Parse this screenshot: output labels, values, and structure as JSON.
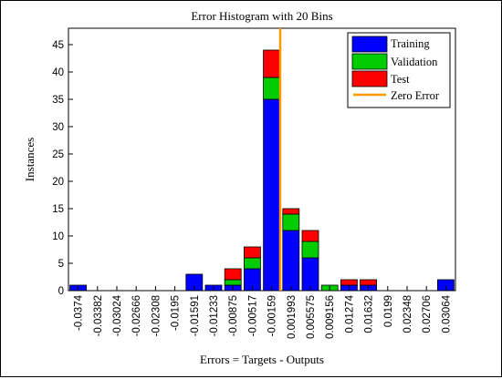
{
  "chart_data": {
    "type": "bar",
    "stacked": true,
    "title": "Error Histogram with 20 Bins",
    "xlabel": "Errors = Targets - Outputs",
    "ylabel": "Instances",
    "ylim": [
      0,
      48
    ],
    "yticks": [
      0,
      5,
      10,
      15,
      20,
      25,
      30,
      35,
      40,
      45
    ],
    "grid": false,
    "legend_position": "top-right",
    "categories": [
      "-0.0374",
      "-0.03382",
      "-0.03024",
      "-0.02666",
      "-0.02308",
      "-0.0195",
      "-0.01591",
      "-0.01233",
      "-0.00875",
      "-0.00517",
      "-0.00159",
      "0.001993",
      "0.005575",
      "0.009156",
      "0.01274",
      "0.01632",
      "0.0199",
      "0.02348",
      "0.02706",
      "0.03064"
    ],
    "series": [
      {
        "name": "Training",
        "color": "#0000ff",
        "values": [
          1,
          0,
          0,
          0,
          0,
          0,
          3,
          1,
          1,
          4,
          35,
          11,
          6,
          0,
          1,
          1,
          0,
          0,
          0,
          2
        ]
      },
      {
        "name": "Validation",
        "color": "#00cc00",
        "values": [
          0,
          0,
          0,
          0,
          0,
          0,
          0,
          0,
          1,
          2,
          4,
          3,
          3,
          1,
          0,
          0,
          0,
          0,
          0,
          0
        ]
      },
      {
        "name": "Test",
        "color": "#ff0000",
        "values": [
          0,
          0,
          0,
          0,
          0,
          0,
          0,
          0,
          2,
          2,
          5,
          1,
          2,
          0,
          1,
          1,
          0,
          0,
          0,
          0
        ]
      }
    ],
    "reference_line": {
      "name": "Zero Error",
      "color": "#ff9900",
      "x": 0
    }
  }
}
